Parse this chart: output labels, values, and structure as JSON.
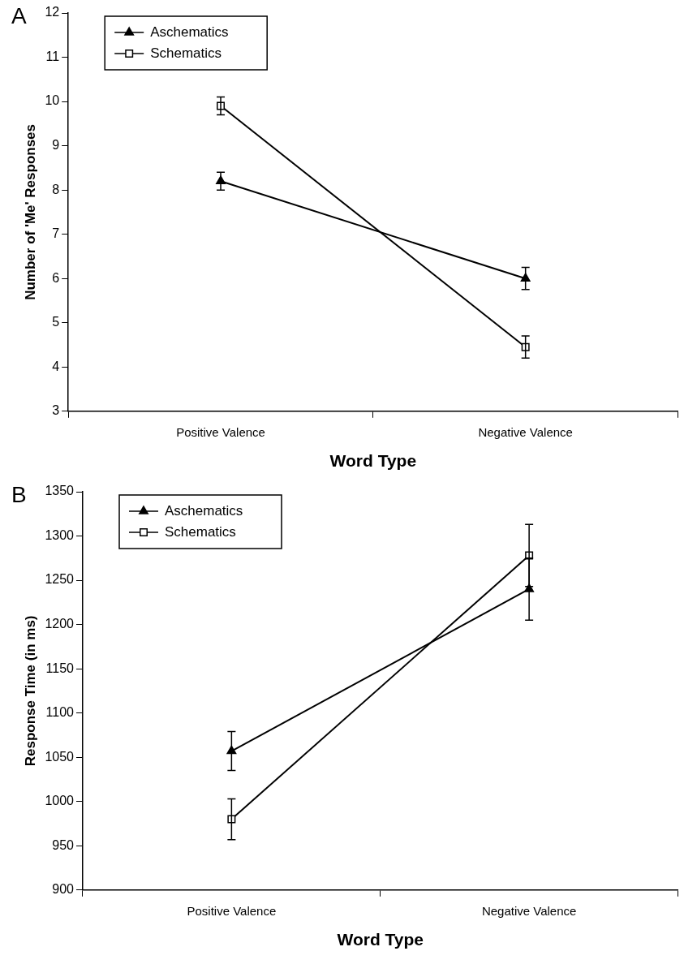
{
  "chart_data": [
    {
      "type": "line",
      "title": "A",
      "xlabel": "Word Type",
      "ylabel": "Number of 'Me' Responses",
      "categories": [
        "Positive Valence",
        "Negative Valence"
      ],
      "series": [
        {
          "name": "Aschematics",
          "color": "#000000",
          "marker": "triangle",
          "values": [
            8.2,
            6.0
          ],
          "errors": [
            0.2,
            0.25
          ]
        },
        {
          "name": "Schematics",
          "color": "#000000",
          "marker": "square",
          "values": [
            9.9,
            4.45
          ],
          "errors": [
            0.2,
            0.25
          ]
        }
      ],
      "ylim": [
        3,
        12
      ],
      "yticks": [
        3,
        4,
        5,
        6,
        7,
        8,
        9,
        10,
        11,
        12
      ],
      "grid": false,
      "legend": "top left",
      "line_style": "solid"
    },
    {
      "type": "line",
      "title": "B",
      "xlabel": "Word Type",
      "ylabel": "Response Time (in ms)",
      "categories": [
        "Positive Valence",
        "Negative Valence"
      ],
      "series": [
        {
          "name": "Aschematics",
          "color": "#000000",
          "marker": "triangle",
          "values": [
            1057,
            1240
          ],
          "errors": [
            22,
            35
          ]
        },
        {
          "name": "Schematics",
          "color": "#000000",
          "marker": "square",
          "values": [
            980,
            1278
          ],
          "errors": [
            23,
            35
          ]
        }
      ],
      "ylim": [
        900,
        1350
      ],
      "yticks": [
        900,
        950,
        1000,
        1050,
        1100,
        1150,
        1200,
        1250,
        1300,
        1350
      ],
      "grid": false,
      "legend": "top left",
      "line_style": "solid"
    }
  ]
}
